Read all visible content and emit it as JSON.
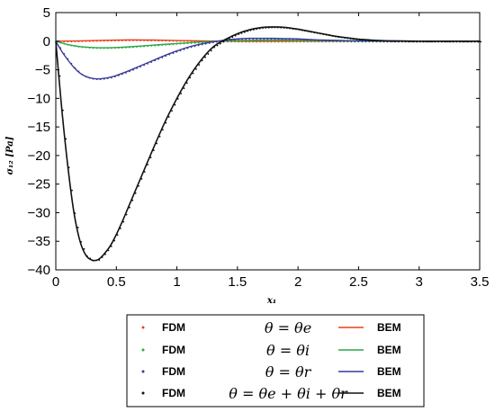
{
  "chart_data": {
    "type": "line",
    "title": "",
    "xlabel": "x₁",
    "ylabel": "σ₁₂ [Pa]",
    "xlim": [
      0,
      3.5
    ],
    "ylim": [
      -40,
      5
    ],
    "x_ticks": [
      0,
      0.5,
      1,
      1.5,
      2,
      2.5,
      3,
      3.5
    ],
    "x_tick_labels": [
      "0",
      "0.5",
      "1",
      "1.5",
      "2",
      "2.5",
      "3",
      "3.5"
    ],
    "y_ticks": [
      5,
      0,
      -5,
      -10,
      -15,
      -20,
      -25,
      -30,
      -35,
      -40
    ],
    "y_tick_labels": [
      "5",
      "0",
      "−5",
      "−10",
      "−15",
      "−20",
      "−25",
      "−30",
      "−35",
      "−40"
    ],
    "grid": false,
    "legend_position": "bottom",
    "series": [
      {
        "key": "e",
        "color": "#e8401c",
        "fdm_label": "FDM",
        "bem_label": "BEM",
        "theta_label": "θ = θe",
        "x": [
          0,
          0.2,
          0.4,
          0.6,
          0.8,
          1.0,
          1.2,
          1.4,
          1.6,
          1.8,
          2.0,
          2.2,
          2.5,
          3.0,
          3.5
        ],
        "y": [
          0,
          0.05,
          0.15,
          0.22,
          0.2,
          0.12,
          0.05,
          0.0,
          -0.02,
          -0.02,
          0.0,
          0.0,
          0.0,
          0.0,
          0.0
        ]
      },
      {
        "key": "i",
        "color": "#2aa845",
        "fdm_label": "FDM",
        "bem_label": "BEM",
        "theta_label": "θ = θi",
        "x": [
          0,
          0.1,
          0.2,
          0.3,
          0.4,
          0.5,
          0.6,
          0.8,
          1.0,
          1.2,
          1.4,
          1.6,
          1.8,
          2.0,
          2.2,
          2.5,
          3.0,
          3.5
        ],
        "y": [
          0,
          -0.6,
          -0.95,
          -1.1,
          -1.15,
          -1.1,
          -1.0,
          -0.7,
          -0.4,
          -0.15,
          0.05,
          0.15,
          0.2,
          0.15,
          0.08,
          0.0,
          0.0,
          0.0
        ]
      },
      {
        "key": "r",
        "color": "#3a3a98",
        "fdm_label": "FDM",
        "bem_label": "BEM",
        "theta_label": "θ = θr",
        "x": [
          0,
          0.05,
          0.1,
          0.15,
          0.2,
          0.25,
          0.3,
          0.35,
          0.4,
          0.45,
          0.5,
          0.6,
          0.7,
          0.8,
          0.9,
          1.0,
          1.1,
          1.2,
          1.3,
          1.4,
          1.5,
          1.6,
          1.7,
          1.8,
          1.9,
          2.0,
          2.2,
          2.4,
          2.6,
          2.8,
          3.0,
          3.5
        ],
        "y": [
          0,
          -1.8,
          -3.3,
          -4.6,
          -5.6,
          -6.2,
          -6.5,
          -6.6,
          -6.5,
          -6.3,
          -6.0,
          -5.2,
          -4.3,
          -3.4,
          -2.5,
          -1.7,
          -1.0,
          -0.5,
          -0.1,
          0.2,
          0.4,
          0.5,
          0.5,
          0.5,
          0.45,
          0.4,
          0.2,
          0.1,
          0.05,
          0.0,
          0.0,
          0.0
        ]
      },
      {
        "key": "total",
        "color": "#111111",
        "fdm_label": "FDM",
        "bem_label": "BEM",
        "theta_label": "θ = θe + θi + θr",
        "x": [
          0,
          0.05,
          0.1,
          0.15,
          0.2,
          0.25,
          0.3,
          0.35,
          0.4,
          0.45,
          0.5,
          0.55,
          0.6,
          0.7,
          0.8,
          0.9,
          1.0,
          1.1,
          1.2,
          1.3,
          1.4,
          1.5,
          1.6,
          1.7,
          1.8,
          1.9,
          2.0,
          2.1,
          2.2,
          2.3,
          2.4,
          2.5,
          2.6,
          2.7,
          2.8,
          3.0,
          3.2,
          3.5
        ],
        "y": [
          0,
          -12,
          -22,
          -30,
          -35,
          -37.5,
          -38.3,
          -38.2,
          -37.2,
          -35.8,
          -33.8,
          -31.5,
          -29,
          -24,
          -19,
          -14.2,
          -10,
          -6.3,
          -3.3,
          -1.0,
          0.3,
          1.3,
          2.0,
          2.4,
          2.5,
          2.4,
          2.1,
          1.7,
          1.3,
          0.9,
          0.6,
          0.35,
          0.2,
          0.1,
          0.05,
          0.0,
          0.0,
          0.0
        ]
      }
    ]
  }
}
